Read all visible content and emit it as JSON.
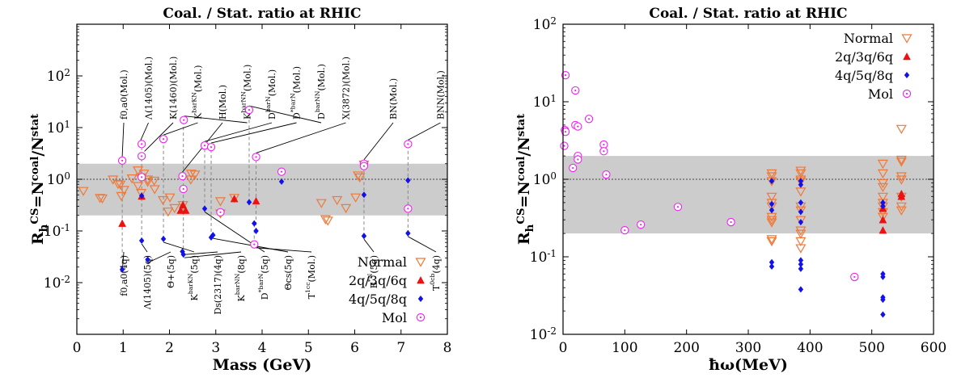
{
  "chart_data": [
    {
      "type": "scatter",
      "title": "Coal. / Stat. ratio at RHIC",
      "xlabel": "Mass (GeV)",
      "ylabel": "R_h^CS=N^coal/N^stat",
      "xlim": [
        0,
        8
      ],
      "ylim": [
        0.001,
        1000
      ],
      "yscale": "log",
      "band": [
        0.2,
        2.0
      ],
      "refline": 1.0,
      "x_ticks": [
        "0",
        "1",
        "2",
        "3",
        "4",
        "5",
        "6",
        "7",
        "8"
      ],
      "y_ticks": [
        [
          "10^{-2}",
          -2
        ],
        [
          "10^{-1}",
          -1
        ],
        [
          "10^{0}",
          0
        ],
        [
          "10^{1}",
          1
        ],
        [
          "10^{2}",
          2
        ]
      ],
      "legend_position": "bottom-right",
      "series": [
        {
          "name": "Normal",
          "marker": "triangle-down-open",
          "color": "#f07838",
          "points": [
            [
              0.14,
              0.6
            ],
            [
              0.5,
              0.44
            ],
            [
              0.55,
              0.43
            ],
            [
              0.78,
              1.0
            ],
            [
              0.89,
              0.82
            ],
            [
              0.94,
              0.8
            ],
            [
              0.96,
              0.48
            ],
            [
              1.02,
              0.63
            ],
            [
              1.19,
              1.05
            ],
            [
              1.32,
              1.5
            ],
            [
              1.32,
              0.75
            ],
            [
              1.38,
              1.1
            ],
            [
              1.39,
              0.55
            ],
            [
              1.45,
              1.3
            ],
            [
              1.53,
              1.0
            ],
            [
              1.53,
              0.9
            ],
            [
              1.67,
              0.95
            ],
            [
              1.68,
              0.65
            ],
            [
              1.86,
              0.4
            ],
            [
              1.97,
              0.24
            ],
            [
              2.01,
              0.45
            ],
            [
              2.11,
              0.28
            ],
            [
              2.29,
              0.32
            ],
            [
              2.46,
              1.0
            ],
            [
              2.47,
              1.3
            ],
            [
              2.55,
              1.25
            ],
            [
              3.1,
              0.22
            ],
            [
              3.4,
              0.44
            ],
            [
              3.1,
              0.38
            ],
            [
              5.28,
              0.35
            ],
            [
              5.37,
              0.17
            ],
            [
              5.42,
              0.16
            ],
            [
              5.62,
              0.4
            ],
            [
              5.81,
              0.28
            ],
            [
              6.07,
              1.2
            ],
            [
              6.11,
              1.1
            ],
            [
              6.02,
              0.45
            ],
            [
              6.2,
              1.95
            ]
          ]
        },
        {
          "name": "2q/3q/6q",
          "marker": "triangle-up-filled",
          "color": "#ee1111",
          "points": [
            [
              0.98,
              0.14
            ],
            [
              1.4,
              0.47
            ],
            [
              2.24,
              0.25
            ],
            [
              2.29,
              0.32
            ],
            [
              2.35,
              0.25
            ],
            [
              3.4,
              0.42
            ],
            [
              3.87,
              0.38
            ]
          ]
        },
        {
          "name": "4q/5q/8q",
          "marker": "diamond-filled",
          "color": "#1111ee",
          "points": [
            [
              0.98,
              0.018
            ],
            [
              1.4,
              0.065
            ],
            [
              1.4,
              0.48
            ],
            [
              1.53,
              0.028
            ],
            [
              1.87,
              0.07
            ],
            [
              2.28,
              0.04
            ],
            [
              2.3,
              0.035
            ],
            [
              2.76,
              0.27
            ],
            [
              2.9,
              0.075
            ],
            [
              2.94,
              0.083
            ],
            [
              3.72,
              0.36
            ],
            [
              3.83,
              0.14
            ],
            [
              3.87,
              0.1
            ],
            [
              4.42,
              0.9
            ],
            [
              6.2,
              0.08
            ],
            [
              6.2,
              0.5
            ],
            [
              7.15,
              0.09
            ],
            [
              7.15,
              0.95
            ]
          ]
        },
        {
          "name": "Mol",
          "marker": "circle-open",
          "color": "#ee22ee",
          "points": [
            [
              0.98,
              2.3
            ],
            [
              1.4,
              4.8
            ],
            [
              1.4,
              2.8
            ],
            [
              1.4,
              1.1
            ],
            [
              1.87,
              6.0
            ],
            [
              2.28,
              1.15
            ],
            [
              2.3,
              0.65
            ],
            [
              2.31,
              14.0
            ],
            [
              2.76,
              4.5
            ],
            [
              2.9,
              4.2
            ],
            [
              3.1,
              0.23
            ],
            [
              3.72,
              22.0
            ],
            [
              3.83,
              0.055
            ],
            [
              3.87,
              2.7
            ],
            [
              4.42,
              1.4
            ],
            [
              6.2,
              2.0
            ],
            [
              6.2,
              1.8
            ],
            [
              7.15,
              4.8
            ],
            [
              7.15,
              0.27
            ]
          ]
        }
      ],
      "connectors": [
        [
          0.98,
          0.018,
          2.3
        ],
        [
          1.4,
          0.065,
          4.8
        ],
        [
          1.87,
          0.07,
          6.0
        ],
        [
          2.3,
          0.035,
          14.0
        ],
        [
          2.76,
          0.27,
          4.5
        ],
        [
          2.9,
          0.075,
          4.2
        ],
        [
          3.72,
          0.36,
          22.0
        ],
        [
          3.83,
          0.055,
          0.14
        ],
        [
          3.87,
          0.1,
          2.7
        ],
        [
          6.2,
          0.08,
          2.0
        ],
        [
          7.15,
          0.09,
          4.8
        ]
      ],
      "top_labels": [
        {
          "text": "f0,a0(Mol.)",
          "x": 0.98,
          "y": 2.3
        },
        {
          "text": "Λ(1405)(Mol.)",
          "x": 1.38,
          "y": 4.8
        },
        {
          "text": "K(1460)(Mol.)",
          "x": 1.46,
          "y": 2.9
        },
        {
          "text": "K^barKN(Mol.)",
          "x": 1.87,
          "y": 6.0
        },
        {
          "text": "H(Mol.)",
          "x": 2.28,
          "y": 1.15
        },
        {
          "text": "K^barNN(Mol.)",
          "x": 2.32,
          "y": 14.0
        },
        {
          "text": "D^barN(Mol.)",
          "x": 2.76,
          "y": 4.5
        },
        {
          "text": "D^*barN(Mol.)",
          "x": 2.9,
          "y": 4.2
        },
        {
          "text": "D^barNN(Mol.)",
          "x": 3.72,
          "y": 22.0
        },
        {
          "text": "X(3872)(Mol.)",
          "x": 3.87,
          "y": 2.7
        },
        {
          "text": "BN(Mol.)",
          "x": 6.2,
          "y": 2.0
        },
        {
          "text": "BNN(Mol.)",
          "x": 7.15,
          "y": 4.8
        }
      ],
      "bottom_labels": [
        {
          "text": "f0,a0(4q)",
          "x": 0.98,
          "y": 0.018
        },
        {
          "text": "Λ(1405)(5q)",
          "x": 1.4,
          "y": 0.065
        },
        {
          "text": "Θ+(5q)",
          "x": 1.53,
          "y": 0.028
        },
        {
          "text": "K^barKN(5q)",
          "x": 1.87,
          "y": 0.07
        },
        {
          "text": "Ds(2317)(4q)",
          "x": 2.28,
          "y": 0.04
        },
        {
          "text": "K^barNN(8q)",
          "x": 2.32,
          "y": 0.035
        },
        {
          "text": "D^*barN(5q)",
          "x": 2.76,
          "y": 0.27
        },
        {
          "text": "Θcs(5q)",
          "x": 2.94,
          "y": 0.083
        },
        {
          "text": "T^1cc(Mol.)",
          "x": 3.83,
          "y": 0.055
        },
        {
          "text": "B^*N(5q)",
          "x": 6.2,
          "y": 0.08
        },
        {
          "text": "T^0cb(4q)",
          "x": 7.15,
          "y": 0.09
        }
      ]
    },
    {
      "type": "scatter",
      "title": "Coal. / Stat. ratio at RHIC",
      "xlabel": "ħω(MeV)",
      "ylabel": "R_h^CS=N^coal/N^stat",
      "xlim": [
        0,
        600
      ],
      "ylim": [
        0.01,
        100
      ],
      "yscale": "log",
      "band": [
        0.2,
        2.0
      ],
      "refline": 1.0,
      "x_ticks": [
        "0",
        "100",
        "200",
        "300",
        "400",
        "500",
        "600"
      ],
      "y_ticks": [
        [
          "10^{-2}",
          -2
        ],
        [
          "10^{-1}",
          -1
        ],
        [
          "10^{0}",
          0
        ],
        [
          "10^{1}",
          1
        ],
        [
          "10^{2}",
          2
        ]
      ],
      "legend_position": "top-right",
      "series": [
        {
          "name": "Normal",
          "marker": "triangle-down-open",
          "color": "#f07838",
          "points": [
            [
              338,
              1.2
            ],
            [
              338,
              1.1
            ],
            [
              338,
              0.95
            ],
            [
              338,
              0.6
            ],
            [
              338,
              0.5
            ],
            [
              338,
              0.45
            ],
            [
              338,
              0.33
            ],
            [
              338,
              0.3
            ],
            [
              338,
              0.28
            ],
            [
              338,
              0.17
            ],
            [
              338,
              0.16
            ],
            [
              385,
              1.3
            ],
            [
              385,
              1.2
            ],
            [
              385,
              1.0
            ],
            [
              385,
              0.95
            ],
            [
              385,
              0.7
            ],
            [
              385,
              0.45
            ],
            [
              385,
              0.4
            ],
            [
              385,
              0.3
            ],
            [
              385,
              0.22
            ],
            [
              385,
              0.2
            ],
            [
              385,
              0.16
            ],
            [
              385,
              0.13
            ],
            [
              518,
              1.6
            ],
            [
              518,
              1.2
            ],
            [
              518,
              0.9
            ],
            [
              518,
              0.8
            ],
            [
              518,
              0.6
            ],
            [
              518,
              0.5
            ],
            [
              518,
              0.45
            ],
            [
              518,
              0.38
            ],
            [
              518,
              0.33
            ],
            [
              548,
              4.5
            ],
            [
              548,
              1.8
            ],
            [
              548,
              1.7
            ],
            [
              548,
              1.1
            ],
            [
              548,
              1.0
            ],
            [
              548,
              0.6
            ],
            [
              548,
              0.45
            ],
            [
              548,
              0.4
            ]
          ]
        },
        {
          "name": "2q/3q/6q",
          "marker": "triangle-up-filled",
          "color": "#ee1111",
          "points": [
            [
              518,
              0.42
            ],
            [
              518,
              0.3
            ],
            [
              518,
              0.22
            ],
            [
              548,
              0.65
            ],
            [
              548,
              0.6
            ]
          ]
        },
        {
          "name": "4q/5q/8q",
          "marker": "diamond-filled",
          "color": "#1111ee",
          "points": [
            [
              338,
              0.95
            ],
            [
              338,
              0.48
            ],
            [
              338,
              0.4
            ],
            [
              338,
              0.085
            ],
            [
              338,
              0.075
            ],
            [
              385,
              0.95
            ],
            [
              385,
              0.85
            ],
            [
              385,
              0.5
            ],
            [
              385,
              0.38
            ],
            [
              385,
              0.28
            ],
            [
              385,
              0.09
            ],
            [
              385,
              0.08
            ],
            [
              385,
              0.07
            ],
            [
              385,
              0.038
            ],
            [
              518,
              0.5
            ],
            [
              518,
              0.45
            ],
            [
              518,
              0.06
            ],
            [
              518,
              0.055
            ],
            [
              518,
              0.03
            ],
            [
              518,
              0.028
            ],
            [
              518,
              0.018
            ]
          ]
        },
        {
          "name": "Mol",
          "marker": "circle-open",
          "color": "#ee22ee",
          "points": [
            [
              4,
              22.0
            ],
            [
              3,
              4.3
            ],
            [
              4,
              4.1
            ],
            [
              2,
              2.7
            ],
            [
              16,
              1.4
            ],
            [
              20,
              14.0
            ],
            [
              20,
              5.0
            ],
            [
              24,
              4.8
            ],
            [
              24,
              2.0
            ],
            [
              24,
              1.8
            ],
            [
              42,
              6.0
            ],
            [
              66,
              2.8
            ],
            [
              66,
              2.3
            ],
            [
              70,
              1.15
            ],
            [
              100,
              0.22
            ],
            [
              126,
              0.26
            ],
            [
              186,
              0.44
            ],
            [
              272,
              0.28
            ],
            [
              472,
              0.055
            ]
          ]
        }
      ]
    }
  ]
}
